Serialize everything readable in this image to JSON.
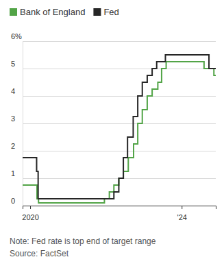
{
  "chart_data": {
    "type": "line",
    "line_style": "step",
    "series": [
      {
        "name": "Bank of England",
        "color": "#52a447",
        "x": [
          2019.8,
          2020.18,
          2020.22,
          2021.96,
          2022.09,
          2022.21,
          2022.34,
          2022.46,
          2022.59,
          2022.73,
          2022.84,
          2022.96,
          2023.09,
          2023.22,
          2023.37,
          2023.47,
          2023.59,
          2024.59,
          2024.85,
          2024.9
        ],
        "values": [
          0.75,
          0.25,
          0.1,
          0.25,
          0.5,
          0.75,
          1.0,
          1.25,
          1.75,
          2.25,
          3.0,
          3.5,
          4.0,
          4.25,
          4.5,
          5.0,
          5.25,
          5.0,
          4.75,
          4.75
        ]
      },
      {
        "name": "Fed",
        "color": "#262626",
        "x": [
          2019.8,
          2020.17,
          2020.21,
          2022.21,
          2022.34,
          2022.46,
          2022.57,
          2022.72,
          2022.84,
          2022.96,
          2023.09,
          2023.22,
          2023.34,
          2023.57,
          2024.72,
          2024.9
        ],
        "values": [
          1.75,
          1.25,
          0.25,
          0.5,
          1.0,
          1.75,
          2.5,
          3.25,
          4.0,
          4.5,
          4.75,
          5.0,
          5.25,
          5.5,
          5.0,
          5.0
        ]
      }
    ],
    "xlim": [
      2019.8,
      2024.9
    ],
    "xticks": [
      2020,
      {
        "value": 2024,
        "label": "'24"
      }
    ],
    "ylim": [
      0,
      6
    ],
    "yticks": [
      0,
      1,
      2,
      3,
      4,
      5,
      {
        "value": 6,
        "label": "6%"
      }
    ],
    "grid": true,
    "legend": "top-left",
    "annotations": [
      "Note: Fed rate is top end of target range",
      "Source: FactSet"
    ]
  }
}
